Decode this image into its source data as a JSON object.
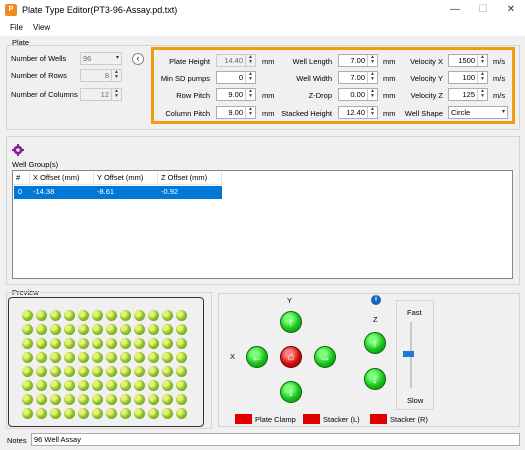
{
  "window": {
    "title": "Plate Type Editor(PT3-96-Assay.pd.txt)",
    "icon": "app-icon",
    "minimize": "—",
    "maximize": "☐",
    "close": "✕"
  },
  "menu": {
    "file": "File",
    "view": "View"
  },
  "plate": {
    "group_label": "Plate",
    "number_of_wells": {
      "label": "Number of Wells",
      "value": "96"
    },
    "number_of_rows": {
      "label": "Number of Rows",
      "value": "8"
    },
    "number_of_columns": {
      "label": "Number of Columns",
      "value": "12"
    },
    "collapse_icon": "‹"
  },
  "params": {
    "plate_height": {
      "label": "Plate Height",
      "value": "14.40",
      "unit": "mm"
    },
    "min_sd_pumps": {
      "label": "Min SD pumps",
      "value": "0"
    },
    "row_pitch": {
      "label": "Row Pitch",
      "value": "9.00",
      "unit": "mm"
    },
    "column_pitch": {
      "label": "Column Pitch",
      "value": "9.00",
      "unit": "mm"
    },
    "well_length": {
      "label": "Well Length",
      "value": "7.00",
      "unit": "mm"
    },
    "well_width": {
      "label": "Well Width",
      "value": "7.00",
      "unit": "mm"
    },
    "z_drop": {
      "label": "Z-Drop",
      "value": "0.00",
      "unit": "mm"
    },
    "stacked_height": {
      "label": "Stacked Height",
      "value": "12.40",
      "unit": "mm"
    },
    "velocity_x": {
      "label": "Velocity X",
      "value": "1500",
      "unit": "m/s"
    },
    "velocity_y": {
      "label": "Velocity Y",
      "value": "100",
      "unit": "m/s"
    },
    "velocity_z": {
      "label": "Velocity Z",
      "value": "125",
      "unit": "m/s"
    },
    "well_shape": {
      "label": "Well Shape",
      "value": "Circle"
    }
  },
  "well_group": {
    "label": "Well Group(s)",
    "columns": [
      "#",
      "X Offset (mm)",
      "Y Offset (mm)",
      "Z Offset (mm)"
    ],
    "rows": [
      [
        "0",
        "-14.38",
        "-8.61",
        "-0.92"
      ]
    ]
  },
  "preview": {
    "label": "Preview",
    "rows": 8,
    "cols": 12
  },
  "controls": {
    "y_label": "Y",
    "x_label": "X",
    "z_label": "Z",
    "fast": "Fast",
    "slow": "Slow",
    "info_icon": "i",
    "plate_clamp": "Plate Clamp",
    "stacker_l": "Stacker (L)",
    "stacker_r": "Stacker (R)"
  },
  "notes": {
    "label": "Notes",
    "value": "96 Well Assay"
  },
  "colors": {
    "accent": "#f39c12",
    "selection": "#0078d7",
    "green": "#19c419",
    "red": "#d01010"
  }
}
